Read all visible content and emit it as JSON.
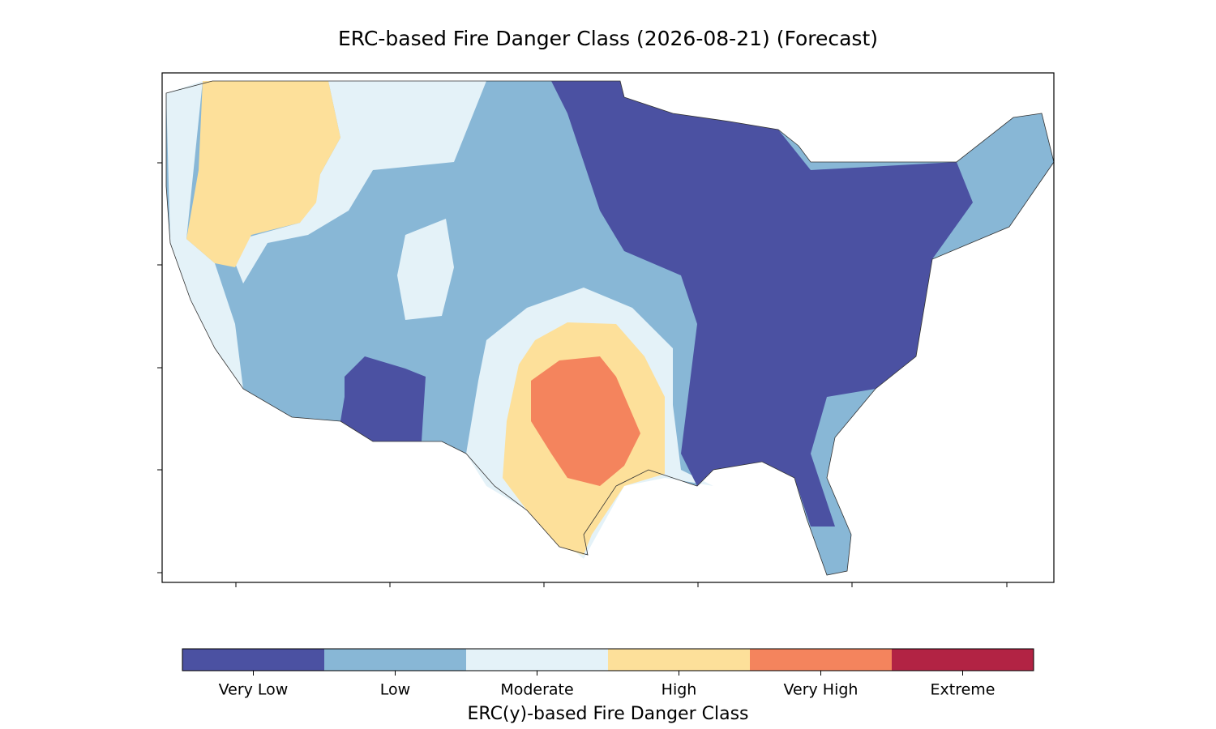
{
  "title": "ERC-based Fire Danger Class (2026-08-21) (Forecast)",
  "colorbar": {
    "label": "ERC(y)-based Fire Danger Class",
    "classes": [
      {
        "label": "Very Low",
        "color": "#4b51a2"
      },
      {
        "label": "Low",
        "color": "#88b7d6"
      },
      {
        "label": "Moderate",
        "color": "#e4f2f8"
      },
      {
        "label": "High",
        "color": "#fde09a"
      },
      {
        "label": "Very High",
        "color": "#f4845d"
      },
      {
        "label": "Extreme",
        "color": "#b22344"
      }
    ]
  }
}
